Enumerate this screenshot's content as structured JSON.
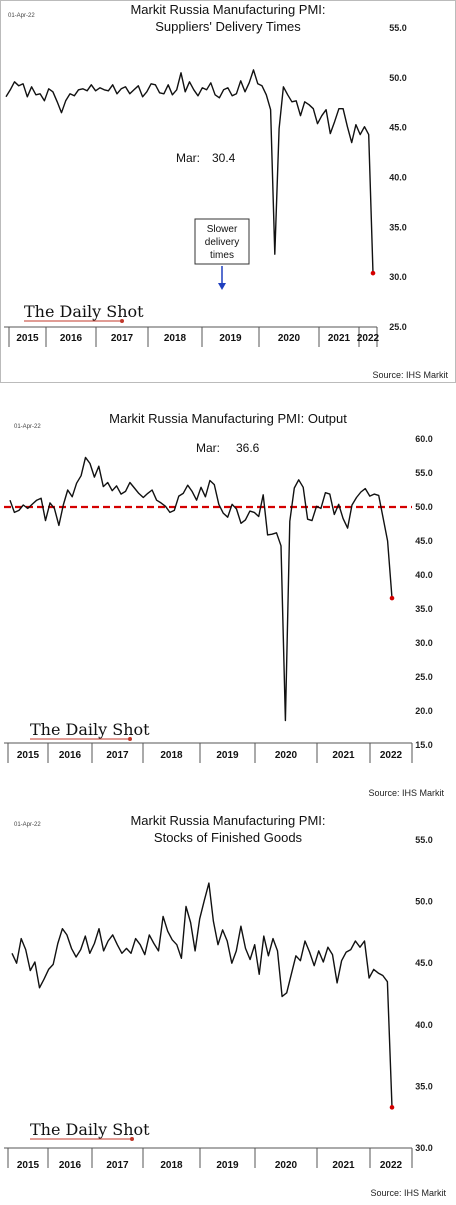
{
  "chart_data": [
    {
      "type": "line",
      "date_label": "01-Apr-22",
      "title_lines": [
        "Markit Russia Manufacturing PMI:",
        "Suppliers' Delivery Times"
      ],
      "annotation": {
        "label": "Mar:",
        "value": "30.4"
      },
      "callout": [
        "Slower",
        "delivery",
        "times"
      ],
      "brand": "The Daily Shot",
      "source": "Source: IHS Markit",
      "x_labels": [
        "2015",
        "2016",
        "2017",
        "2018",
        "2019",
        "2020",
        "2021",
        "2022"
      ],
      "ylim": [
        25,
        55
      ],
      "y_ticks": [
        "55.0",
        "50.0",
        "45.0",
        "40.0",
        "35.0",
        "30.0",
        "25.0"
      ],
      "y_tick_values": [
        55,
        50,
        45,
        40,
        35,
        30,
        25
      ],
      "series": [
        {
          "values": [
            48.1,
            48.8,
            49.6,
            49.2,
            49.4,
            48.1,
            49.1,
            48.3,
            48.4,
            47.7,
            48.9,
            48.6,
            47.6,
            46.5,
            47.7,
            48.4,
            48.2,
            48.8,
            48.9,
            48.7,
            49.3,
            48.7,
            49.0,
            48.8,
            48.7,
            49.3,
            48.4,
            48.9,
            49.1,
            48.4,
            48.8,
            49.2,
            48.1,
            48.6,
            49.4,
            49.3,
            48.5,
            48.4,
            49.3,
            48.3,
            48.8,
            50.5,
            48.6,
            49.6,
            48.8,
            48.2,
            49.0,
            48.8,
            49.5,
            48.3,
            48.0,
            48.8,
            49.0,
            48.2,
            48.4,
            49.7,
            48.6,
            49.5,
            50.8,
            49.4,
            49.2,
            48.3,
            46.8,
            32.3,
            44.9,
            49.1,
            48.3,
            47.6,
            47.7,
            46.2,
            47.6,
            47.3,
            46.9,
            45.4,
            46.2,
            46.8,
            44.4,
            45.6,
            46.9,
            46.9,
            45.1,
            43.5,
            45.3,
            44.3,
            45.1,
            44.3,
            30.4
          ]
        }
      ]
    },
    {
      "type": "line",
      "date_label": "01-Apr-22",
      "title_lines": [
        "Markit Russia Manufacturing PMI: Output"
      ],
      "annotation": {
        "label": "Mar:",
        "value": "36.6"
      },
      "brand": "The Daily Shot",
      "source": "Source: IHS Markit",
      "x_labels": [
        "2015",
        "2016",
        "2017",
        "2018",
        "2019",
        "2020",
        "2021",
        "2022"
      ],
      "ylim": [
        15,
        60
      ],
      "y_ticks": [
        "60.0",
        "55.0",
        "50.0",
        "45.0",
        "40.0",
        "35.0",
        "30.0",
        "25.0",
        "20.0",
        "15.0"
      ],
      "y_tick_values": [
        60,
        55,
        50,
        45,
        40,
        35,
        30,
        25,
        20,
        15
      ],
      "reference_line": 50,
      "series": [
        {
          "values": [
            51.0,
            49.2,
            49.5,
            50.3,
            49.8,
            50.4,
            51.0,
            51.3,
            48.0,
            50.6,
            49.8,
            47.3,
            50.3,
            52.5,
            51.5,
            53.5,
            54.6,
            57.3,
            56.4,
            54.4,
            56.0,
            53.0,
            53.6,
            52.4,
            53.1,
            51.9,
            52.3,
            53.6,
            52.8,
            52.0,
            51.4,
            52.0,
            52.5,
            51.0,
            50.6,
            50.1,
            49.2,
            49.5,
            51.6,
            52.0,
            53.2,
            52.3,
            51.0,
            52.9,
            51.5,
            53.9,
            53.3,
            50.4,
            49.1,
            48.5,
            50.4,
            49.7,
            47.6,
            48.1,
            49.4,
            49.2,
            48.6,
            51.8,
            45.9,
            46.0,
            46.2,
            44.3,
            18.6,
            47.9,
            52.8,
            54.0,
            52.9,
            48.2,
            48.0,
            50.1,
            49.8,
            52.1,
            51.9,
            48.9,
            50.4,
            48.3,
            46.9,
            50.3,
            51.4,
            52.2,
            52.7,
            51.6,
            51.9,
            51.7,
            48.4,
            45.0,
            36.6
          ]
        }
      ]
    },
    {
      "type": "line",
      "date_label": "01-Apr-22",
      "title_lines": [
        "Markit Russia Manufacturing PMI:",
        "Stocks of Finished Goods"
      ],
      "brand": "The Daily Shot",
      "source": "Source: IHS Markit",
      "x_labels": [
        "2015",
        "2016",
        "2017",
        "2018",
        "2019",
        "2020",
        "2021",
        "2022"
      ],
      "ylim": [
        30,
        55
      ],
      "y_ticks": [
        "55.0",
        "50.0",
        "45.0",
        "40.0",
        "35.0",
        "30.0"
      ],
      "y_tick_values": [
        55,
        50,
        45,
        40,
        35,
        30
      ],
      "series": [
        {
          "values": [
            45.8,
            45.0,
            47.0,
            46.1,
            44.4,
            45.1,
            43.0,
            43.7,
            44.5,
            44.9,
            46.6,
            47.8,
            47.3,
            46.2,
            45.5,
            46.1,
            47.2,
            45.8,
            46.6,
            47.8,
            46.0,
            46.8,
            47.3,
            46.5,
            45.8,
            46.2,
            45.8,
            47.0,
            46.5,
            45.7,
            47.3,
            46.6,
            46.0,
            48.8,
            47.6,
            46.9,
            46.5,
            45.4,
            49.6,
            48.3,
            46.0,
            48.6,
            50.1,
            51.5,
            48.4,
            46.5,
            47.7,
            46.8,
            45.0,
            46.0,
            48.0,
            46.2,
            45.3,
            46.5,
            44.1,
            47.2,
            45.6,
            47.0,
            46.0,
            42.3,
            42.6,
            44.1,
            45.6,
            45.2,
            46.8,
            45.9,
            44.8,
            46.0,
            45.1,
            46.3,
            45.7,
            43.4,
            45.2,
            45.9,
            46.1,
            46.8,
            46.3,
            46.8,
            43.8,
            44.5,
            44.2,
            44.0,
            43.5,
            33.3
          ]
        }
      ]
    }
  ]
}
